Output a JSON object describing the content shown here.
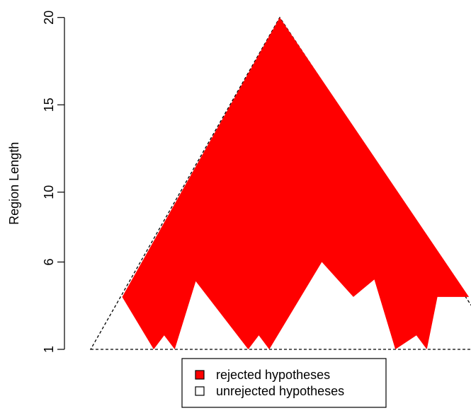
{
  "chart_data": {
    "type": "area",
    "title": "",
    "xlabel": "",
    "ylabel": "Region Length",
    "ylim": [
      1,
      20
    ],
    "y_ticks": [
      1,
      6,
      10,
      15,
      20
    ],
    "x_axis_shown": false,
    "grid": false,
    "legend_position": "bottom-center",
    "series": [
      {
        "name": "rejected hypotheses",
        "color": "#ff0000",
        "x": [
          3,
          4.5,
          5,
          5.5,
          6.5,
          9,
          9.5,
          10,
          12.5,
          14,
          15,
          16,
          17,
          17.5,
          18,
          19.5
        ],
        "upper_y": [
          4,
          20,
          20,
          20,
          20,
          20,
          20,
          20,
          20,
          20,
          20,
          20,
          20,
          20,
          20,
          4
        ],
        "lower_y": [
          4,
          1,
          1.8,
          1,
          4.9,
          1,
          1.8,
          1,
          6,
          4,
          5,
          1,
          1.8,
          1,
          4,
          4
        ]
      },
      {
        "name": "unrejected hypotheses",
        "color": "#ffffff",
        "outline": "dashed",
        "x": [
          1.5,
          19.5,
          21,
          10.5,
          1.5
        ],
        "y": [
          1,
          1,
          1,
          20,
          1
        ]
      }
    ],
    "legend": [
      {
        "label": "rejected hypotheses",
        "color": "#ff0000"
      },
      {
        "label": "unrejected hypotheses",
        "color": "#ffffff"
      }
    ]
  }
}
